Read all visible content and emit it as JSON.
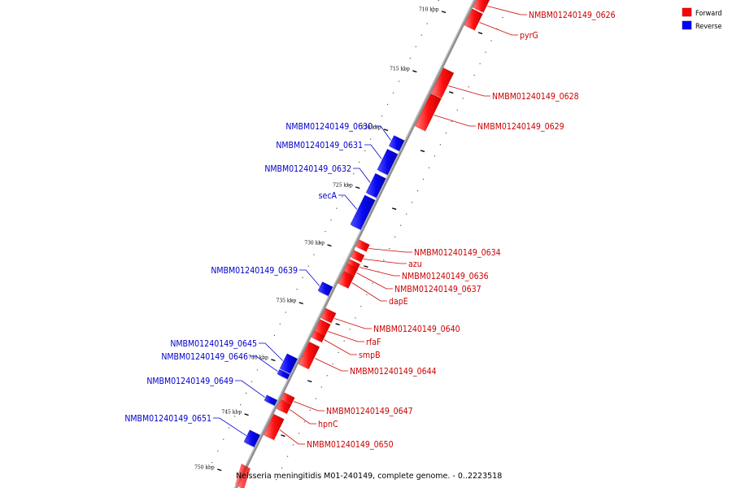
{
  "caption": "Neisseria meningitidis M01-240149, complete genome. - 0..2223518",
  "legend": {
    "items": [
      {
        "label": "Forward",
        "color": "#ff0000"
      },
      {
        "label": "Reverse",
        "color": "#0000ff"
      }
    ]
  },
  "scale_marks": [
    {
      "label": "710 kbp"
    },
    {
      "label": "715 kbp"
    },
    {
      "label": "720 kbp"
    },
    {
      "label": "725 kbp"
    },
    {
      "label": "730 kbp"
    },
    {
      "label": "735 kbp"
    },
    {
      "label": "740 kbp"
    },
    {
      "label": "745 kbp"
    },
    {
      "label": "750 kbp"
    }
  ],
  "genes": {
    "forward": [
      "NMBM01240149_0626",
      "pyrG",
      "NMBM01240149_0628",
      "NMBM01240149_0629",
      "NMBM01240149_0634",
      "azu",
      "NMBM01240149_0636",
      "NMBM01240149_0637",
      "dapE",
      "NMBM01240149_0640",
      "rfaF",
      "smpB",
      "NMBM01240149_0644",
      "NMBM01240149_0647",
      "hpnC",
      "NMBM01240149_0650"
    ],
    "reverse": [
      "NMBM01240149_0630",
      "NMBM01240149_0631",
      "NMBM01240149_0632",
      "secA",
      "NMBM01240149_0639",
      "NMBM01240149_0645",
      "NMBM01240149_0646",
      "NMBM01240149_0649",
      "NMBM01240149_0651"
    ]
  },
  "colors": {
    "forward": "#ff0000",
    "reverse": "#0000ff",
    "forward_label": "#cc0000",
    "reverse_label": "#0000cc",
    "backbone": "#888888"
  }
}
